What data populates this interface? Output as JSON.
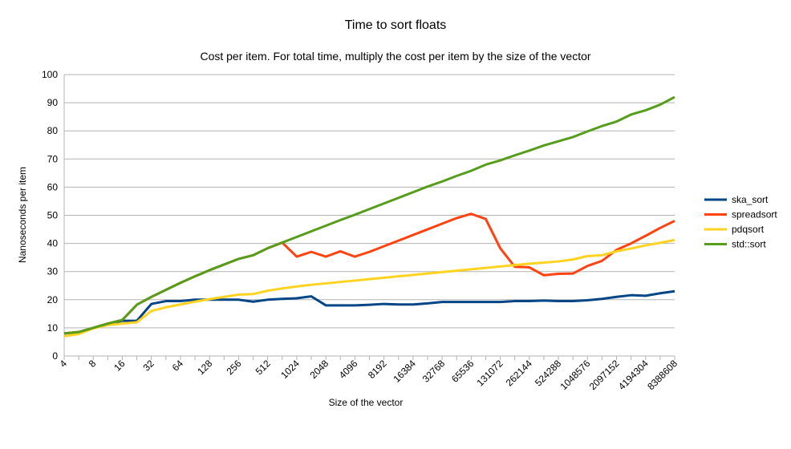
{
  "chart_data": {
    "type": "line",
    "title": "Time to sort floats",
    "subtitle": "Cost per item. For total time, multiply the cost per item by the size of the vector",
    "x_label": "Size of the vector",
    "y_label": "Nanoseconds per item",
    "categories": [
      "4",
      null,
      "8",
      null,
      "16",
      null,
      "32",
      null,
      "64",
      null,
      "128",
      null,
      "256",
      null,
      "512",
      null,
      "1024",
      null,
      "2048",
      null,
      "4096",
      null,
      "8192",
      null,
      "16384",
      null,
      "32768",
      null,
      "65536",
      null,
      "131072",
      null,
      "262144",
      null,
      "524288",
      null,
      "1048576",
      null,
      "2097152",
      null,
      "4194304",
      null,
      "8388608"
    ],
    "series": [
      {
        "name": "ska_sort",
        "color": "#004586",
        "values": [
          8,
          8.5,
          10,
          11.5,
          12.5,
          12.5,
          18.5,
          19.5,
          19.5,
          20,
          20,
          20,
          20,
          19.3,
          20,
          20.3,
          20.5,
          21.2,
          18,
          18,
          18,
          18.2,
          18.5,
          18.3,
          18.3,
          18.7,
          19.2,
          19.2,
          19.2,
          19.2,
          19.2,
          19.5,
          19.5,
          19.7,
          19.5,
          19.5,
          19.8,
          20.3,
          21,
          21.6,
          21.4,
          22.3,
          23
        ]
      },
      {
        "name": "spreadsort",
        "color": "#ff420e",
        "values": [
          8,
          8.5,
          10,
          11.5,
          12.8,
          18.2,
          21,
          23.5,
          26,
          28.3,
          30.5,
          32.5,
          34.5,
          35.8,
          38.3,
          40.3,
          35.3,
          37,
          35.3,
          37.2,
          35.3,
          37,
          39,
          41,
          43,
          45,
          47,
          49,
          50.5,
          48.7,
          38.3,
          31.7,
          31.5,
          28.7,
          29.2,
          29.3,
          32,
          33.8,
          37.7,
          40,
          42.7,
          45.5,
          48
        ]
      },
      {
        "name": "pdqsort",
        "color": "#ffd320",
        "values": [
          7,
          7.8,
          9.8,
          11,
          11.5,
          12,
          16,
          17.3,
          18.3,
          19.3,
          20.2,
          21,
          21.8,
          22,
          23.2,
          24,
          24.7,
          25.3,
          25.8,
          26.3,
          26.8,
          27.3,
          27.8,
          28.3,
          28.8,
          29.3,
          29.8,
          30.3,
          30.8,
          31.3,
          31.8,
          32.3,
          32.8,
          33.2,
          33.6,
          34.3,
          35.5,
          35.8,
          37.2,
          38.2,
          39.3,
          40.2,
          41.2
        ]
      },
      {
        "name": "std::sort",
        "color": "#579d1c",
        "values": [
          8,
          8.5,
          10,
          11.5,
          12.8,
          18.2,
          21,
          23.5,
          26,
          28.3,
          30.5,
          32.5,
          34.5,
          35.8,
          38.3,
          40.3,
          42.3,
          44.3,
          46.3,
          48.3,
          50.2,
          52.2,
          54.2,
          56.2,
          58.2,
          60.2,
          62,
          64,
          65.8,
          68,
          69.5,
          71.3,
          73,
          74.8,
          76.3,
          77.8,
          79.8,
          81.7,
          83.3,
          85.8,
          87.3,
          89.3,
          92
        ]
      }
    ],
    "ylim": [
      0,
      100
    ],
    "yticks": [
      0,
      10,
      20,
      30,
      40,
      50,
      60,
      70,
      80,
      90,
      100
    ],
    "grid": true,
    "legend": "right"
  }
}
